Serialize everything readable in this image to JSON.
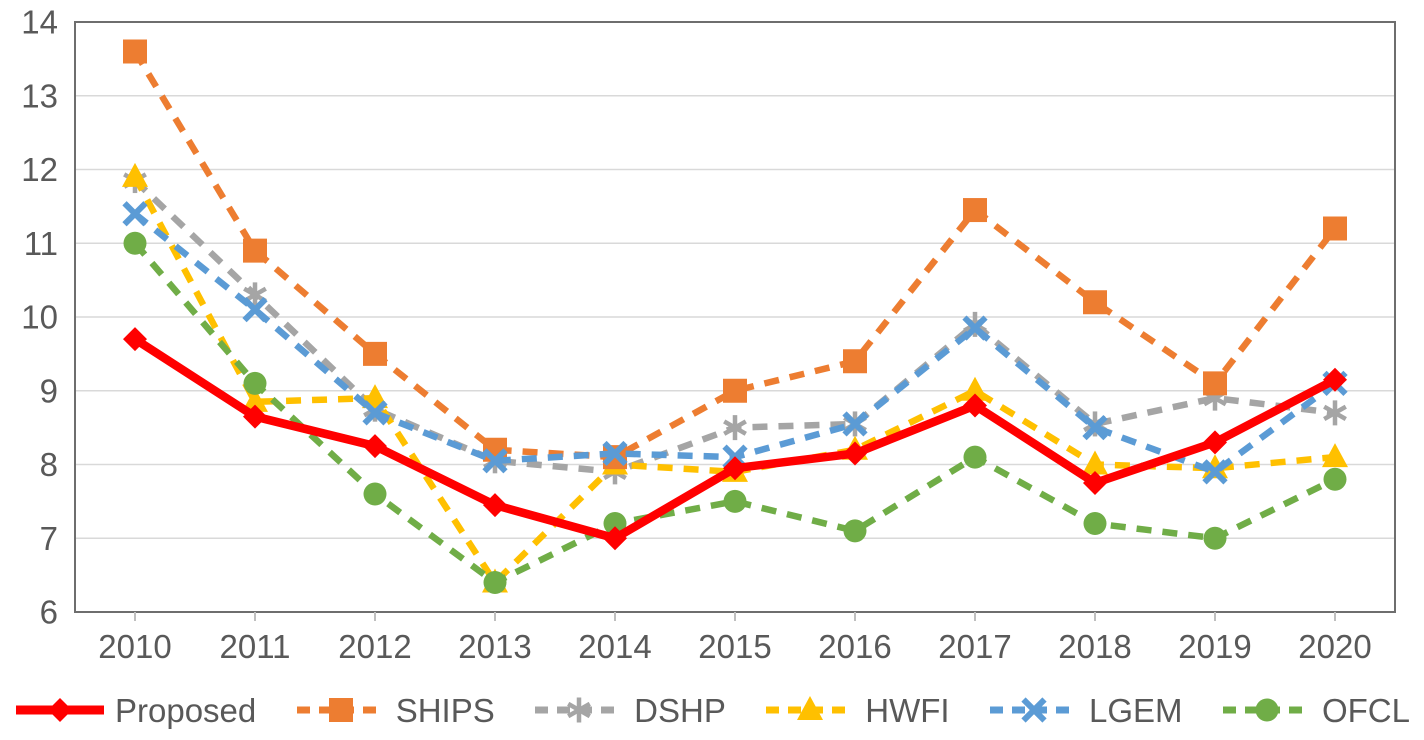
{
  "chart_data": {
    "type": "line",
    "title": "",
    "xlabel": "",
    "ylabel": "",
    "categories": [
      "2010",
      "2011",
      "2012",
      "2013",
      "2014",
      "2015",
      "2016",
      "2017",
      "2018",
      "2019",
      "2020"
    ],
    "ylim": [
      6,
      14
    ],
    "yticks": [
      6,
      7,
      8,
      9,
      10,
      11,
      12,
      13,
      14
    ],
    "grid": true,
    "legend_position": "bottom",
    "axis_color": "#6e6e6e",
    "gridline_color": "#d9d9d9",
    "tick_color": "#bfbfbf",
    "label_color": "#595959",
    "series": [
      {
        "name": "Proposed",
        "color": "#ff0000",
        "style": "solid",
        "marker": "diamond",
        "values": [
          9.7,
          8.65,
          8.25,
          7.45,
          7.0,
          7.95,
          8.15,
          8.8,
          7.75,
          8.3,
          9.15
        ]
      },
      {
        "name": "SHIPS",
        "color": "#ed7d31",
        "style": "dashed",
        "marker": "square",
        "values": [
          13.6,
          10.9,
          9.5,
          8.2,
          8.1,
          9.0,
          9.4,
          11.45,
          10.2,
          9.1,
          11.2
        ]
      },
      {
        "name": "DSHP",
        "color": "#a5a5a5",
        "style": "dashed",
        "marker": "asterisk",
        "values": [
          11.85,
          10.3,
          8.75,
          8.05,
          7.9,
          8.5,
          8.55,
          9.9,
          8.55,
          8.9,
          8.7
        ]
      },
      {
        "name": "HWFI",
        "color": "#ffc000",
        "style": "dashed",
        "marker": "triangle",
        "values": [
          11.9,
          8.85,
          8.9,
          6.4,
          8.0,
          7.9,
          8.2,
          9.0,
          8.0,
          7.95,
          8.1
        ]
      },
      {
        "name": "LGEM",
        "color": "#5b9bd5",
        "style": "dashed",
        "marker": "x",
        "values": [
          11.4,
          10.1,
          8.7,
          8.05,
          8.15,
          8.1,
          8.55,
          9.85,
          8.5,
          7.9,
          9.1
        ]
      },
      {
        "name": "OFCL",
        "color": "#70ad47",
        "style": "dashed",
        "marker": "circle",
        "values": [
          11.0,
          9.1,
          7.6,
          6.4,
          7.2,
          7.5,
          7.1,
          8.1,
          7.2,
          7.0,
          7.8
        ]
      }
    ]
  }
}
